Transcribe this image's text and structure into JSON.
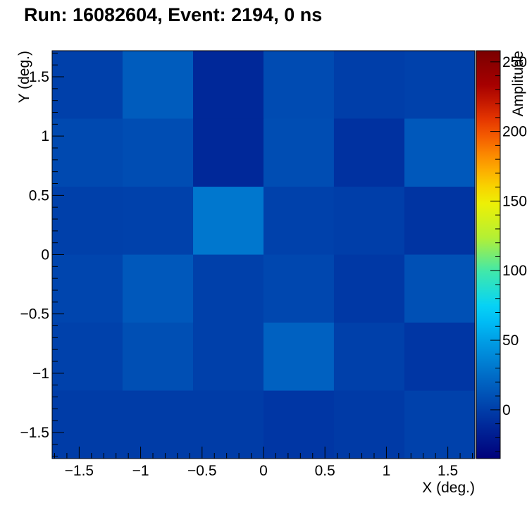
{
  "chart_data": {
    "type": "heatmap",
    "title": "Run: 16082604, Event: 2194, 0 ns",
    "xlabel": "X (deg.)",
    "ylabel": "Y (deg.)",
    "zlabel": "Amplitude",
    "xlim": [
      -1.72,
      1.72
    ],
    "ylim": [
      -1.72,
      1.72
    ],
    "zlim": [
      -35,
      258
    ],
    "x_edges": [
      -1.72,
      -1.147,
      -0.573,
      0,
      0.573,
      1.147,
      1.72
    ],
    "y_edges": [
      -1.72,
      -1.147,
      -0.573,
      0,
      0.573,
      1.147,
      1.72
    ],
    "x_ticks": [
      {
        "value": -1.5,
        "label": "−1.5"
      },
      {
        "value": -1,
        "label": "−1"
      },
      {
        "value": -0.5,
        "label": "−0.5"
      },
      {
        "value": 0,
        "label": "0"
      },
      {
        "value": 0.5,
        "label": "0.5"
      },
      {
        "value": 1,
        "label": "1"
      },
      {
        "value": 1.5,
        "label": "1.5"
      }
    ],
    "y_ticks": [
      {
        "value": -1.5,
        "label": "−1.5"
      },
      {
        "value": -1,
        "label": "−1"
      },
      {
        "value": -0.5,
        "label": "−0.5"
      },
      {
        "value": 0,
        "label": "0"
      },
      {
        "value": 0.5,
        "label": "0.5"
      },
      {
        "value": 1,
        "label": "1"
      },
      {
        "value": 1.5,
        "label": "1.5"
      }
    ],
    "z_ticks": [
      {
        "value": 0,
        "label": "0"
      },
      {
        "value": 50,
        "label": "50"
      },
      {
        "value": 100,
        "label": "100"
      },
      {
        "value": 150,
        "label": "150"
      },
      {
        "value": 200,
        "label": "200"
      },
      {
        "value": 250,
        "label": "250"
      }
    ],
    "values_rows_top_to_bottom": [
      [
        1,
        16,
        -12,
        7,
        0,
        2
      ],
      [
        6,
        8,
        -12,
        8,
        -7,
        14
      ],
      [
        1,
        2,
        30,
        2,
        0,
        -5
      ],
      [
        4,
        14,
        1,
        5,
        -3,
        10
      ],
      [
        2,
        9,
        1,
        19,
        1,
        -4
      ],
      [
        -1,
        -1,
        -1,
        -4,
        -2,
        2
      ]
    ],
    "colormap": [
      "#00007a",
      "#002e9e",
      "#0060c0",
      "#0094e0",
      "#00cfff",
      "#3be8b0",
      "#b8f030",
      "#f4f000",
      "#ff9a00",
      "#f04000",
      "#aa0000",
      "#7a0000"
    ]
  }
}
